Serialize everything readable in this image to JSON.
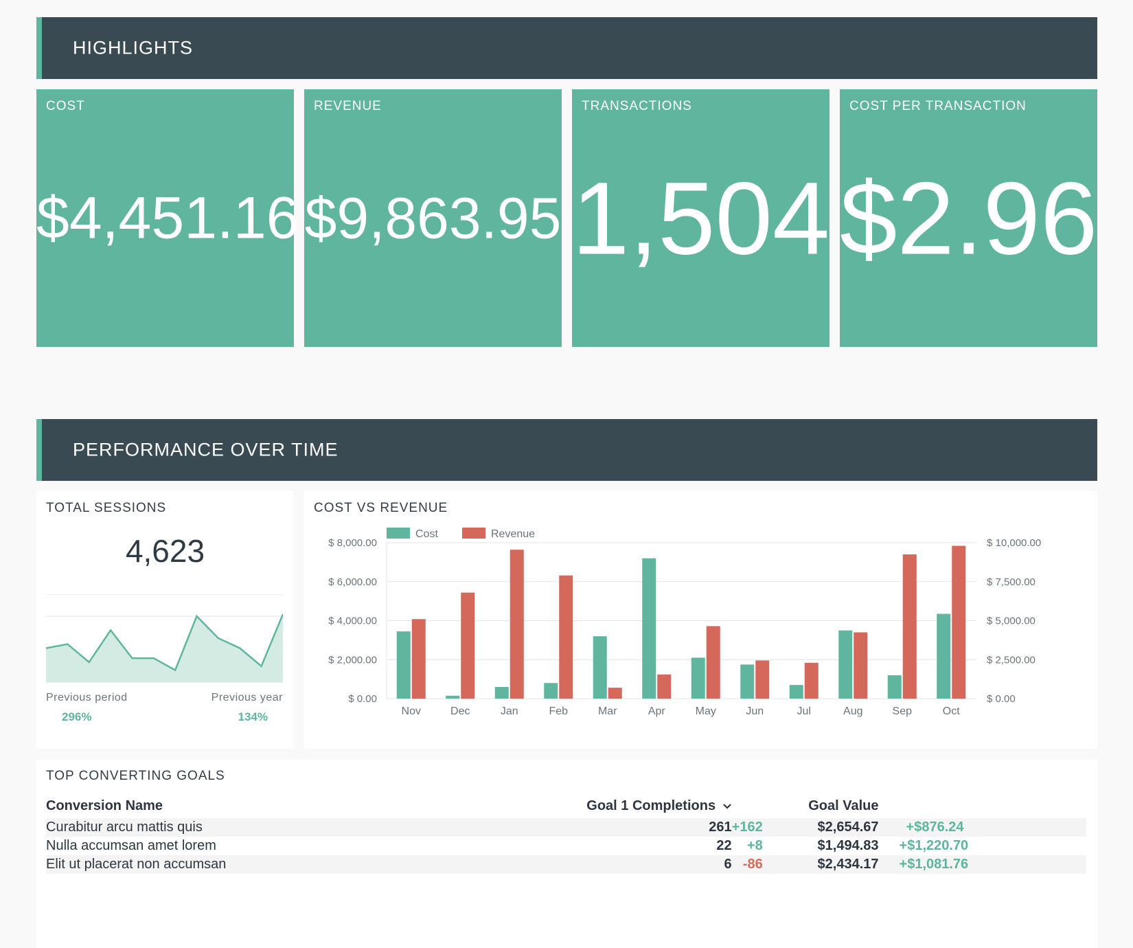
{
  "highlights": {
    "title": "HIGHLIGHTS",
    "kpis": [
      {
        "label": "COST",
        "value": "$4,451.16"
      },
      {
        "label": "REVENUE",
        "value": "$9,863.95"
      },
      {
        "label": "TRANSACTIONS",
        "value": "1,504"
      },
      {
        "label": "COST PER TRANSACTION",
        "value": "$2.96"
      }
    ]
  },
  "performance": {
    "title": "PERFORMANCE OVER TIME",
    "sessions": {
      "title": "TOTAL SESSIONS",
      "value": "4,623",
      "prev_period_label": "Previous period",
      "prev_period_value": "296%",
      "prev_year_label": "Previous year",
      "prev_year_value": "134%",
      "spark": [
        17,
        19,
        10,
        26,
        12,
        12,
        6,
        33,
        22,
        17,
        8,
        34
      ],
      "spark_max": 44
    },
    "cost_vs_revenue": {
      "title": "COST VS REVENUE"
    }
  },
  "chart_data": {
    "type": "bar",
    "categories": [
      "Nov",
      "Dec",
      "Jan",
      "Feb",
      "Mar",
      "Apr",
      "May",
      "Jun",
      "Jul",
      "Aug",
      "Sep",
      "Oct"
    ],
    "series": [
      {
        "name": "Cost",
        "axis": "left",
        "color": "#5fb59e",
        "values": [
          3450,
          150,
          600,
          800,
          3200,
          7200,
          2100,
          1750,
          700,
          3500,
          1200,
          4350
        ]
      },
      {
        "name": "Revenue",
        "axis": "right",
        "color": "#d4685a",
        "values": [
          5100,
          6800,
          9550,
          7900,
          700,
          1550,
          4650,
          2450,
          2300,
          4250,
          9250,
          9800
        ]
      }
    ],
    "left_axis": {
      "min": 0,
      "max": 8000,
      "ticks": [
        "$ 0.00",
        "$ 2,000.00",
        "$ 4,000.00",
        "$ 6,000.00",
        "$ 8,000.00"
      ]
    },
    "right_axis": {
      "min": 0,
      "max": 10000,
      "ticks": [
        "$ 0.00",
        "$ 2,500.00",
        "$ 5,000.00",
        "$ 7,500.00",
        "$ 10,000.00"
      ]
    },
    "legend": "top-left",
    "grid": true
  },
  "goals": {
    "title": "TOP CONVERTING GOALS",
    "headers": {
      "name": "Conversion Name",
      "completions": "Goal 1 Completions",
      "value": "Goal Value"
    },
    "rows": [
      {
        "name": "Curabitur arcu mattis quis",
        "completions": "261",
        "completions_delta": "+162",
        "value": "$2,654.67",
        "value_delta": "+$876.24"
      },
      {
        "name": "Nulla accumsan amet lorem",
        "completions": "22",
        "completions_delta": "+8",
        "value": "$1,494.83",
        "value_delta": "+$1,220.70"
      },
      {
        "name": "Elit ut placerat non accumsan",
        "completions": "6",
        "completions_delta": "-86",
        "value": "$2,434.17",
        "value_delta": "+$1,081.76"
      }
    ]
  }
}
